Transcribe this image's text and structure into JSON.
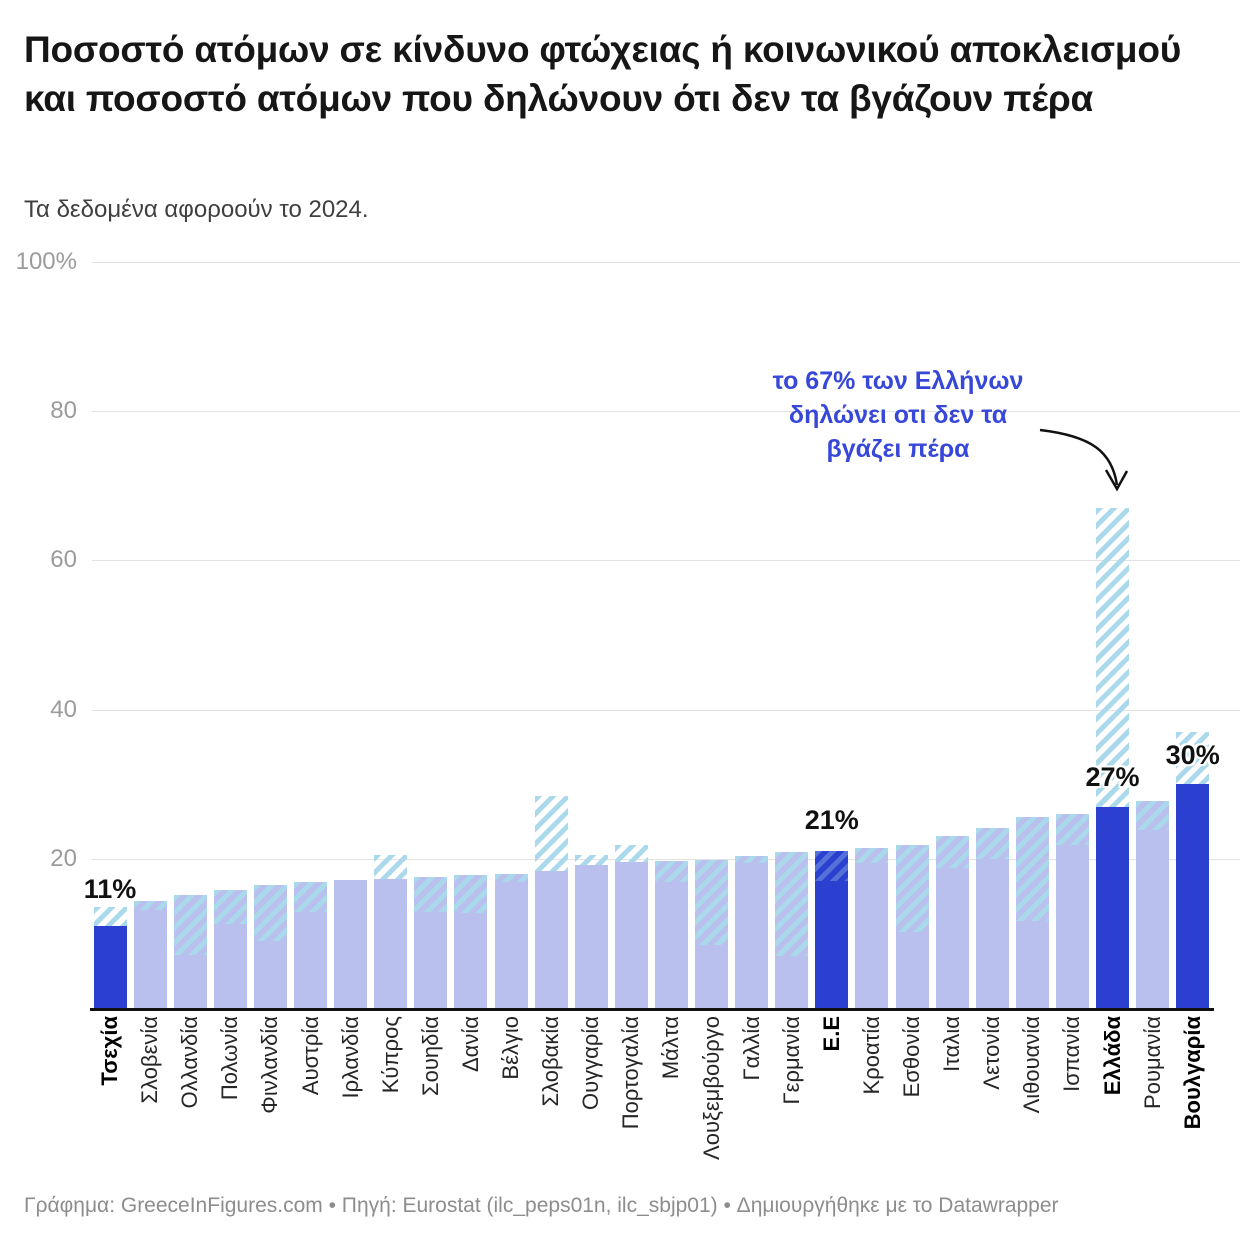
{
  "header": {
    "title": "Ποσοστό ατόμων σε κίνδυνο φτώχειας ή κοινωνικού αποκλεισμού και ποσοστό ατόμων που δηλώνουν ότι δεν τα βγάζουν πέρα",
    "subtitle": "Τα δεδομένα αφοροούν το 2024."
  },
  "annotation": {
    "text": "το 67% των Ελλήνων\nδηλώνει οτι δεν τα\nβγάζει πέρα",
    "color": "#3747d8"
  },
  "footer": {
    "credit": "Γράφημα: GreeceInFigures.com • Πηγή: Eurostat (ilc_peps01n, ilc_sbjp01) • Δημιουργήθηκε με το Datawrapper"
  },
  "colors": {
    "bar": "#bac0ed",
    "bar_highlight": "#2b40d0",
    "stripe": "#a9d9ea",
    "grid": "#e2e2e2",
    "baseline": "#111111",
    "ytick_text": "#9b9b9b",
    "xtick_text": "#262626"
  },
  "chart_data": {
    "type": "bar",
    "ylim": [
      0,
      100
    ],
    "yticks": [
      {
        "label": "100%",
        "value": 100
      },
      {
        "label": "80",
        "value": 80
      },
      {
        "label": "60",
        "value": 60
      },
      {
        "label": "40",
        "value": 40
      },
      {
        "label": "20",
        "value": 20
      }
    ],
    "grid": true,
    "legend": "none",
    "categories": [
      "Τσεχία",
      "Σλοβενία",
      "Ολλανδία",
      "Πολωνία",
      "Φινλανδία",
      "Αυστρία",
      "Ιρλανδία",
      "Κύπρος",
      "Σουηδία",
      "Δανία",
      "Βέλγιο",
      "Σλοβακία",
      "Ουγγαρία",
      "Πορτογαλία",
      "Μάλτα",
      "Λουξεμβούργο",
      "Γαλλία",
      "Γερμανία",
      "Ε.Ε",
      "Κροατία",
      "Εσθονία",
      "Ιταλια",
      "Λετονία",
      "Λιθουανία",
      "Ισπανία",
      "Ελλάδα",
      "Ρουμανία",
      "Βουλγαρία"
    ],
    "series": [
      {
        "name": "ποσοστό σε κίνδυνο φτώχειας ή κοινωνικού αποκλεισμού (συμπαγής μπάρα)",
        "values": [
          11,
          14.3,
          15.2,
          15.8,
          16.5,
          16.9,
          17.1,
          17.3,
          17.6,
          17.8,
          18,
          18.3,
          19.2,
          19.6,
          19.7,
          19.9,
          20.4,
          20.9,
          21,
          21.5,
          21.8,
          23,
          24.1,
          25.6,
          26,
          27,
          27.8,
          30
        ]
      },
      {
        "name": "δηλώνουν ότι δεν τα βγάζουν πέρα (διαγραμμισμένη μπάρα)",
        "values": [
          13.5,
          13.2,
          7.1,
          11.3,
          9,
          12.9,
          null,
          20.5,
          12.9,
          12.7,
          16.9,
          28.4,
          20.5,
          21.9,
          16.9,
          8.5,
          19.5,
          7,
          17,
          19.5,
          10.2,
          18.7,
          20,
          11.6,
          21.8,
          67,
          23.9,
          37
        ]
      }
    ],
    "highlighted": [
      "Τσεχία",
      "Ε.Ε",
      "Ελλάδα",
      "Βουλγαρία"
    ],
    "value_labels": [
      {
        "category": "Τσεχία",
        "text": "11%",
        "at": 13.9
      },
      {
        "category": "Ε.Ε",
        "text": "21%",
        "at": 23.2
      },
      {
        "category": "Ελλάδα",
        "text": "27%",
        "at": 29.0
      },
      {
        "category": "Βουλγαρία",
        "text": "30%",
        "at": 31.9
      }
    ]
  }
}
